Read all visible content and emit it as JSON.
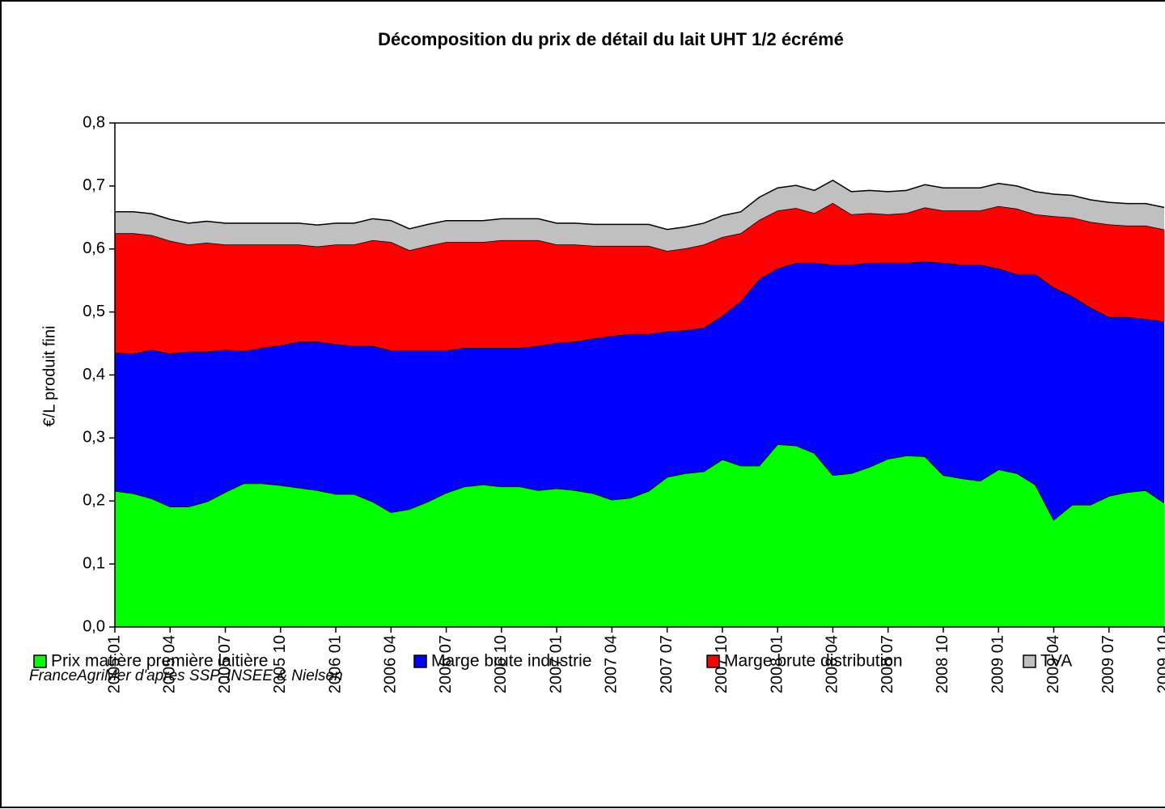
{
  "chart_data": {
    "type": "stacked_area",
    "title": "Décomposition du prix de détail du lait UHT 1/2 écrémé",
    "ylabel": "€/L produit fini",
    "source": "FranceAgriMer d'après SSP, INSEE & Nielsen",
    "legend": "bottom",
    "grid": false,
    "ylim": [
      0,
      0.8
    ],
    "yticks": [
      {
        "value": 0,
        "label": "0,0"
      },
      {
        "value": 0.1,
        "label": "0,1"
      },
      {
        "value": 0.2,
        "label": "0,2"
      },
      {
        "value": 0.3,
        "label": "0,3"
      },
      {
        "value": 0.4,
        "label": "0,4"
      },
      {
        "value": 0.5,
        "label": "0,5"
      },
      {
        "value": 0.6,
        "label": "0,6"
      },
      {
        "value": 0.7,
        "label": "0,7"
      },
      {
        "value": 0.8,
        "label": "0,8"
      }
    ],
    "categories": [
      "2005 01",
      null,
      null,
      "2005 04",
      null,
      null,
      "2005 07",
      null,
      null,
      "2005 10",
      null,
      null,
      "2006 01",
      null,
      null,
      "2006 04",
      null,
      null,
      "2006 07",
      null,
      null,
      "2006 10",
      null,
      null,
      "2007 01",
      null,
      null,
      "2007 04",
      null,
      null,
      "2007 07",
      null,
      null,
      "2007 10",
      null,
      null,
      "2008 01",
      null,
      null,
      "2008 04",
      null,
      null,
      "2008 07",
      null,
      null,
      "2008 10",
      null,
      null,
      "2009 01",
      null,
      null,
      "2009 04",
      null,
      null,
      "2009 07",
      null,
      null,
      "2009 10"
    ],
    "series": [
      {
        "name": "Prix matière première laitière",
        "color": "#00ff00",
        "values": [
          0.216,
          0.212,
          0.204,
          0.191,
          0.191,
          0.199,
          0.214,
          0.228,
          0.228,
          0.225,
          0.221,
          0.217,
          0.211,
          0.211,
          0.199,
          0.182,
          0.187,
          0.199,
          0.213,
          0.223,
          0.226,
          0.223,
          0.223,
          0.217,
          0.22,
          0.217,
          0.212,
          0.202,
          0.205,
          0.216,
          0.238,
          0.244,
          0.247,
          0.266,
          0.256,
          0.256,
          0.29,
          0.288,
          0.276,
          0.241,
          0.244,
          0.254,
          0.267,
          0.272,
          0.271,
          0.241,
          0.236,
          0.232,
          0.25,
          0.244,
          0.226,
          0.17,
          0.194,
          0.194,
          0.208,
          0.214,
          0.217,
          0.197
        ]
      },
      {
        "name": "Marge brute industrie",
        "color": "#0000ff",
        "values": [
          0.219,
          0.222,
          0.236,
          0.243,
          0.246,
          0.238,
          0.226,
          0.21,
          0.215,
          0.222,
          0.232,
          0.236,
          0.238,
          0.235,
          0.247,
          0.257,
          0.252,
          0.24,
          0.226,
          0.22,
          0.217,
          0.22,
          0.22,
          0.229,
          0.231,
          0.236,
          0.246,
          0.26,
          0.26,
          0.249,
          0.231,
          0.227,
          0.228,
          0.228,
          0.261,
          0.296,
          0.279,
          0.29,
          0.302,
          0.334,
          0.331,
          0.324,
          0.311,
          0.306,
          0.309,
          0.337,
          0.339,
          0.343,
          0.319,
          0.316,
          0.334,
          0.369,
          0.331,
          0.313,
          0.284,
          0.278,
          0.272,
          0.288
        ]
      },
      {
        "name": "Marge brute distribution",
        "color": "#ff0000",
        "values": [
          0.19,
          0.191,
          0.182,
          0.179,
          0.17,
          0.173,
          0.167,
          0.169,
          0.164,
          0.16,
          0.154,
          0.151,
          0.158,
          0.161,
          0.168,
          0.172,
          0.159,
          0.166,
          0.172,
          0.168,
          0.168,
          0.171,
          0.171,
          0.168,
          0.156,
          0.154,
          0.147,
          0.143,
          0.14,
          0.14,
          0.128,
          0.13,
          0.132,
          0.125,
          0.108,
          0.094,
          0.092,
          0.087,
          0.079,
          0.098,
          0.08,
          0.079,
          0.077,
          0.079,
          0.086,
          0.083,
          0.086,
          0.086,
          0.099,
          0.104,
          0.095,
          0.113,
          0.125,
          0.136,
          0.147,
          0.145,
          0.148,
          0.146
        ]
      },
      {
        "name": "TVA",
        "color": "#c0c0c0",
        "values": [
          0.034,
          0.034,
          0.034,
          0.034,
          0.034,
          0.034,
          0.034,
          0.034,
          0.034,
          0.034,
          0.034,
          0.034,
          0.034,
          0.034,
          0.034,
          0.034,
          0.034,
          0.034,
          0.034,
          0.034,
          0.034,
          0.034,
          0.034,
          0.034,
          0.034,
          0.034,
          0.034,
          0.034,
          0.034,
          0.034,
          0.034,
          0.034,
          0.034,
          0.034,
          0.034,
          0.036,
          0.036,
          0.036,
          0.036,
          0.036,
          0.036,
          0.036,
          0.036,
          0.036,
          0.036,
          0.036,
          0.036,
          0.036,
          0.036,
          0.036,
          0.036,
          0.035,
          0.035,
          0.035,
          0.035,
          0.035,
          0.035,
          0.035
        ]
      }
    ]
  }
}
